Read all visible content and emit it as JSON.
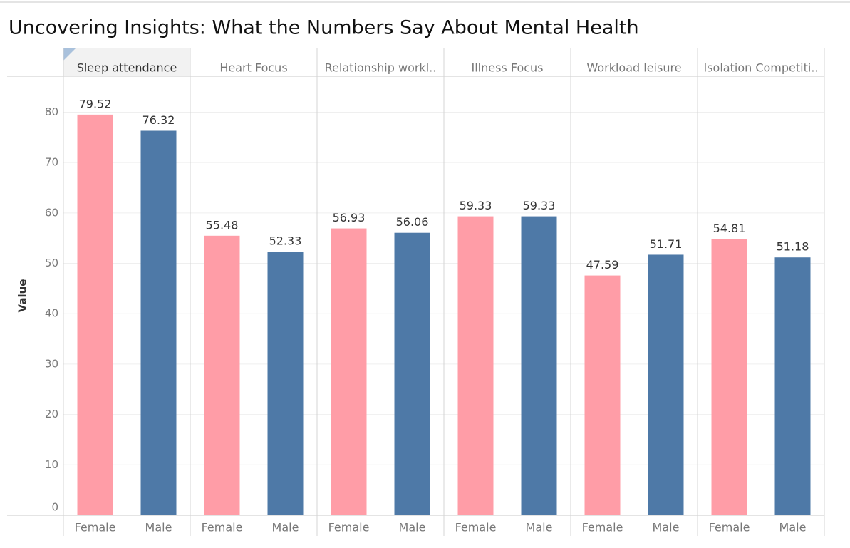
{
  "chart_data": {
    "type": "bar",
    "title": "Uncovering Insights: What the Numbers Say About Mental Health",
    "y_label": "Value",
    "categories": [
      "Sleep attendance",
      "Heart Focus",
      "Relationship workl..",
      "Illness Focus",
      "Workload leisure",
      "Isolation Competiti.."
    ],
    "series": [
      {
        "name": "Female",
        "color": "#ff9da7",
        "values": [
          79.52,
          55.48,
          56.93,
          59.33,
          47.59,
          54.81
        ]
      },
      {
        "name": "Male",
        "color": "#4e79a7",
        "values": [
          76.32,
          52.33,
          56.06,
          59.33,
          51.71,
          51.18
        ]
      }
    ],
    "ylim": [
      0,
      87
    ],
    "yticks": [
      0,
      10,
      20,
      30,
      40,
      50,
      60,
      70,
      80
    ],
    "grid": true
  }
}
